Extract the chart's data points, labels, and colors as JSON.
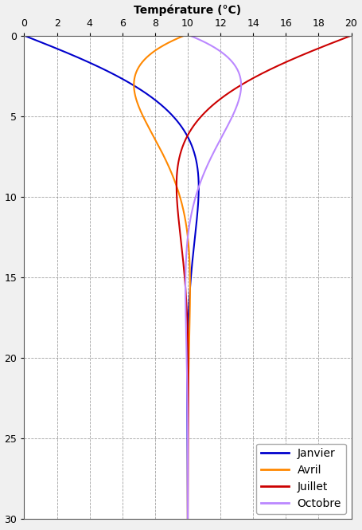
{
  "title": "Température (°C)",
  "xlim": [
    0,
    20
  ],
  "ylim": [
    30,
    0
  ],
  "xticks": [
    0,
    2,
    4,
    6,
    8,
    10,
    12,
    14,
    16,
    18,
    20
  ],
  "yticks": [
    0,
    5,
    10,
    15,
    20,
    25,
    30
  ],
  "T_mean": 10.0,
  "A_surface": 10.0,
  "damping_depth": 4.0,
  "omega_period": 365.0,
  "seasons": {
    "Janvier": {
      "phase_days": 15,
      "color": "#0000cc",
      "linewidth": 1.5
    },
    "Avril": {
      "phase_days": 105,
      "color": "#ff8800",
      "linewidth": 1.5
    },
    "Juillet": {
      "phase_days": 196,
      "color": "#cc0000",
      "linewidth": 1.5
    },
    "Octobre": {
      "phase_days": 288,
      "color": "#bb88ff",
      "linewidth": 1.5
    }
  },
  "background_color": "#f0f0f0",
  "axes_color": "#ffffff",
  "grid_color": "#888888",
  "legend_loc": "lower right",
  "figsize": [
    4.55,
    6.65
  ],
  "dpi": 100,
  "title_fontsize": 10,
  "tick_fontsize": 9,
  "legend_fontsize": 10
}
